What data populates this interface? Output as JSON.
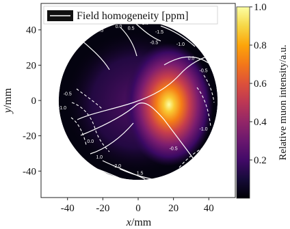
{
  "chart_data": {
    "type": "heatmap",
    "title": "",
    "xlabel": "x/mm",
    "xlabel_italic": "x",
    "xlabel_unit": "/mm",
    "ylabel": "y/mm",
    "ylabel_italic": "y",
    "ylabel_unit": "/mm",
    "xlim": [
      -55,
      55
    ],
    "ylim": [
      -55,
      55
    ],
    "x_ticks": [
      -40,
      -20,
      0,
      20,
      40
    ],
    "y_ticks": [
      -40,
      -20,
      0,
      20,
      40
    ],
    "x_tick_labels": [
      "-40",
      "-20",
      "0",
      "20",
      "40"
    ],
    "y_tick_labels": [
      "-40",
      "-20",
      "0",
      "20",
      "40"
    ],
    "aperture_radius_mm": 45,
    "colormap": "inferno",
    "colorbar": {
      "label": "Relative muon intensity/a.u.",
      "range": [
        0.0,
        1.0
      ],
      "ticks": [
        0.2,
        0.4,
        0.6,
        0.8,
        1.0
      ],
      "tick_labels": [
        "0.2",
        "0.4",
        "0.6",
        "0.8",
        "1.0"
      ]
    },
    "intensity_peak": {
      "x": 17,
      "y": 0,
      "value": 1.0
    },
    "contour_series": {
      "name": "Field homogeneity [ppm]",
      "color": "#ffffff",
      "levels": [
        -2.0,
        -1.5,
        -1.0,
        -0.5,
        0.0,
        0.5,
        1.0,
        1.5,
        2.0
      ],
      "labels": [
        {
          "text": "-1.0",
          "x": -35,
          "y": 44
        },
        {
          "text": "-0.5",
          "x": -22,
          "y": 39
        },
        {
          "text": "0.0",
          "x": -11,
          "y": 41
        },
        {
          "text": "0.5",
          "x": -4,
          "y": 40
        },
        {
          "text": "1.5",
          "x": 4,
          "y": 43
        },
        {
          "text": "-1.5",
          "x": 12,
          "y": 38
        },
        {
          "text": "-0.5",
          "x": 9,
          "y": 32
        },
        {
          "text": "-1.0",
          "x": 24,
          "y": 31
        },
        {
          "text": "0.0",
          "x": 30,
          "y": 23
        },
        {
          "text": "-0.5",
          "x": 37,
          "y": 16
        },
        {
          "text": "-0.5",
          "x": -40,
          "y": 3
        },
        {
          "text": "-1.0",
          "x": -43,
          "y": -5
        },
        {
          "text": "0.0",
          "x": -27,
          "y": -24
        },
        {
          "text": "1.0",
          "x": -22,
          "y": -33
        },
        {
          "text": "-2.0",
          "x": -12,
          "y": -38
        },
        {
          "text": "1.5",
          "x": 1,
          "y": -42
        },
        {
          "text": "-0.5",
          "x": 20,
          "y": -28
        },
        {
          "text": "-1.0",
          "x": 37,
          "y": -17
        }
      ]
    },
    "legend": {
      "position": "top-left",
      "entries": [
        "Field homogeneity [ppm]"
      ]
    }
  }
}
